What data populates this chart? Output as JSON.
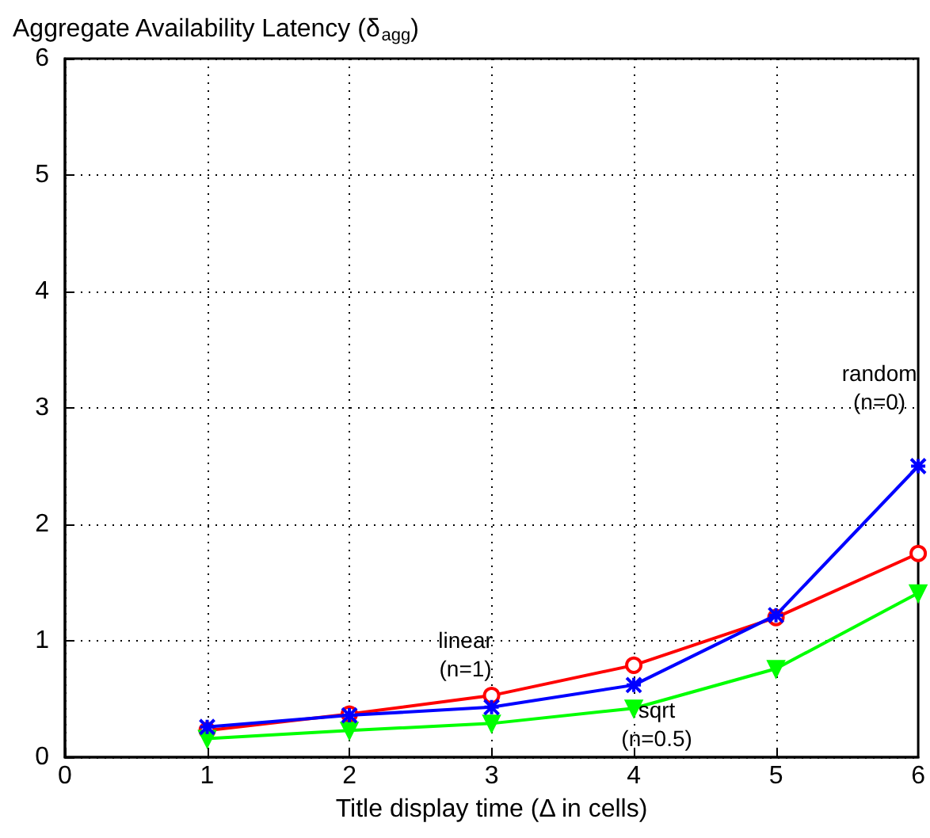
{
  "chart_data": {
    "type": "line",
    "title": "Aggregate Availability Latency (δ$_{agg}$)",
    "xlabel": "Title display time (Δ in cells)",
    "x": [
      1,
      2,
      3,
      4,
      5,
      6
    ],
    "series": [
      {
        "name": "linear\n(n=1)",
        "color": "#ff0000",
        "marker": "circle",
        "values": [
          0.23,
          0.37,
          0.53,
          0.79,
          1.2,
          1.75
        ]
      },
      {
        "name": "random\n(n=0)",
        "color": "#0000ff",
        "marker": "cross",
        "values": [
          0.26,
          0.36,
          0.43,
          0.62,
          1.22,
          2.5
        ]
      },
      {
        "name": "sqrt\n(n=0.5)",
        "color": "#00ff00",
        "marker": "triangle",
        "values": [
          0.16,
          0.23,
          0.29,
          0.42,
          0.76,
          1.41
        ]
      }
    ],
    "xlim": [
      0,
      6
    ],
    "xticks": [
      0,
      1,
      2,
      3,
      4,
      5,
      6
    ],
    "ylim": [
      0,
      6
    ],
    "yticks": [
      0,
      1,
      2,
      3,
      4,
      5,
      6
    ],
    "grid": true,
    "legend": false,
    "line_style": "solid"
  }
}
